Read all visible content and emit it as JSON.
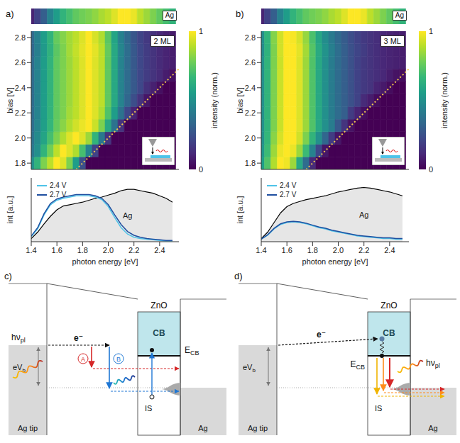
{
  "chart_data": [
    {
      "type": "heatmap",
      "panel": "a)",
      "title": "2 ML",
      "ylabel": "bias [V]",
      "tick_labels": "y",
      "xlim": [
        1.4,
        2.55
      ],
      "ylim": [
        1.75,
        2.85
      ],
      "yticks": [
        1.8,
        {
          "value": 2,
          "label": "2.0"
        },
        2.2,
        2.4,
        2.6,
        2.8
      ],
      "x": [
        1.4,
        1.45,
        1.5,
        1.55,
        1.6,
        1.65,
        1.7,
        1.75,
        1.8,
        1.85,
        1.9,
        1.95,
        2.0,
        2.05,
        2.1,
        2.15,
        2.2,
        2.25,
        2.3,
        2.35,
        2.4,
        2.45,
        2.5
      ],
      "y": [
        1.8,
        1.9,
        2.0,
        2.1,
        2.2,
        2.3,
        2.4,
        2.5,
        2.6,
        2.7,
        2.8
      ],
      "cells": [
        [
          0.5,
          0.65,
          0.8,
          0.9,
          1,
          0.95,
          0.8,
          0.55,
          0.25,
          0,
          0,
          0,
          0,
          0,
          0,
          0,
          0,
          0,
          0,
          0,
          0,
          0,
          0
        ],
        [
          0.4,
          0.5,
          0.65,
          0.78,
          0.9,
          1,
          0.95,
          0.88,
          0.7,
          0.45,
          0.2,
          0,
          0,
          0,
          0,
          0,
          0,
          0,
          0,
          0,
          0,
          0,
          0
        ],
        [
          0.38,
          0.48,
          0.58,
          0.7,
          0.8,
          0.88,
          0.95,
          1,
          0.95,
          0.85,
          0.65,
          0.4,
          0.15,
          0,
          0,
          0,
          0,
          0,
          0,
          0,
          0,
          0,
          0
        ],
        [
          0.36,
          0.46,
          0.56,
          0.66,
          0.76,
          0.82,
          0.88,
          0.93,
          0.97,
          1,
          0.92,
          0.8,
          0.6,
          0.38,
          0.15,
          0,
          0,
          0,
          0,
          0,
          0,
          0,
          0
        ],
        [
          0.35,
          0.45,
          0.55,
          0.65,
          0.75,
          0.8,
          0.86,
          0.9,
          0.95,
          1,
          0.95,
          0.88,
          0.72,
          0.55,
          0.38,
          0.22,
          0.1,
          0,
          0,
          0,
          0,
          0,
          0
        ],
        [
          0.35,
          0.45,
          0.55,
          0.65,
          0.75,
          0.8,
          0.85,
          0.9,
          0.95,
          1,
          0.95,
          0.9,
          0.75,
          0.6,
          0.45,
          0.33,
          0.24,
          0.15,
          0.06,
          0,
          0,
          0,
          0
        ],
        [
          0.35,
          0.45,
          0.55,
          0.65,
          0.75,
          0.8,
          0.85,
          0.9,
          0.95,
          1,
          0.95,
          0.9,
          0.75,
          0.6,
          0.45,
          0.35,
          0.28,
          0.22,
          0.14,
          0.09,
          0.04,
          0,
          0
        ],
        [
          0.35,
          0.45,
          0.55,
          0.65,
          0.75,
          0.8,
          0.85,
          0.9,
          0.95,
          1,
          0.95,
          0.9,
          0.75,
          0.6,
          0.45,
          0.35,
          0.28,
          0.22,
          0.18,
          0.15,
          0.12,
          0.08,
          0.04
        ],
        [
          0.35,
          0.45,
          0.55,
          0.65,
          0.75,
          0.8,
          0.85,
          0.9,
          0.95,
          1,
          0.95,
          0.9,
          0.75,
          0.6,
          0.45,
          0.35,
          0.28,
          0.22,
          0.18,
          0.15,
          0.12,
          0.1,
          0.08
        ],
        [
          0.33,
          0.43,
          0.54,
          0.64,
          0.74,
          0.8,
          0.86,
          0.91,
          0.96,
          1,
          0.96,
          0.9,
          0.76,
          0.6,
          0.46,
          0.36,
          0.28,
          0.22,
          0.18,
          0.15,
          0.12,
          0.1,
          0.08
        ],
        [
          0.34,
          0.44,
          0.55,
          0.65,
          0.76,
          0.81,
          0.86,
          0.9,
          0.95,
          1,
          0.94,
          0.88,
          0.74,
          0.58,
          0.44,
          0.34,
          0.27,
          0.21,
          0.17,
          0.14,
          0.11,
          0.09,
          0.07
        ]
      ],
      "colorbar": {
        "label": "intensity (norm.)",
        "range": [
          0,
          1
        ],
        "ticks": [
          0,
          1
        ]
      },
      "reference": {
        "label": "Ag",
        "values": [
          0.1,
          0.2,
          0.3,
          0.45,
          0.55,
          0.65,
          0.7,
          0.75,
          0.78,
          0.8,
          0.83,
          0.87,
          0.9,
          0.95,
          1,
          1,
          0.97,
          0.9,
          0.85,
          0.8,
          0.75,
          0.7,
          0.65
        ]
      },
      "cutoff": {
        "x": [
          1.75,
          2.55
        ],
        "y": [
          1.75,
          2.55
        ],
        "color": "#f2c94c",
        "line_style": "dotted"
      },
      "spectra": {
        "type": "line",
        "xlabel": "photon energy [eV]",
        "ylabel": "int [a.u.]",
        "tick_labels": "x",
        "legend": "upper left",
        "xlim": [
          1.4,
          2.55
        ],
        "xticks": [
          1.4,
          1.6,
          1.8,
          {
            "value": 2,
            "label": "2.0"
          },
          2.2,
          2.4
        ],
        "ylim": [
          0,
          1
        ],
        "yticks": [],
        "x": [
          1.4,
          1.45,
          1.5,
          1.55,
          1.6,
          1.65,
          1.7,
          1.75,
          1.8,
          1.85,
          1.9,
          1.95,
          2.0,
          2.05,
          2.1,
          2.15,
          2.2,
          2.25,
          2.3,
          2.35,
          2.4,
          2.45,
          2.5
        ],
        "series": [
          {
            "name": "Ag",
            "type": "area",
            "color": "#000000",
            "values": [
              0.05,
              0.15,
              0.28,
              0.4,
              0.5,
              0.56,
              0.58,
              0.6,
              0.62,
              0.65,
              0.68,
              0.7,
              0.73,
              0.76,
              0.8,
              0.82,
              0.82,
              0.8,
              0.78,
              0.76,
              0.72,
              0.68,
              0.62
            ]
          },
          {
            "name": "2.4 V",
            "type": "line",
            "color": "#4fc3e8",
            "values": [
              0.08,
              0.2,
              0.42,
              0.58,
              0.65,
              0.68,
              0.7,
              0.72,
              0.72,
              0.72,
              0.7,
              0.66,
              0.55,
              0.38,
              0.22,
              0.12,
              0.07,
              0.05,
              0.04,
              0.03,
              0.02,
              0.01,
              0.01
            ]
          },
          {
            "name": "2.7 V",
            "type": "line",
            "color": "#1f4fa0",
            "values": [
              0.09,
              0.22,
              0.44,
              0.6,
              0.67,
              0.7,
              0.72,
              0.74,
              0.74,
              0.74,
              0.72,
              0.68,
              0.58,
              0.42,
              0.27,
              0.16,
              0.1,
              0.07,
              0.05,
              0.04,
              0.03,
              0.02,
              0.02
            ]
          }
        ]
      }
    },
    {
      "type": "heatmap",
      "panel": "b)",
      "title": "3 ML",
      "ylabel": "bias [V]",
      "tick_labels": "y",
      "xlim": [
        1.4,
        2.55
      ],
      "ylim": [
        1.75,
        2.85
      ],
      "yticks": [
        1.8,
        {
          "value": 2,
          "label": "2.0"
        },
        2.2,
        2.4,
        2.6,
        2.8
      ],
      "x": [
        1.4,
        1.45,
        1.5,
        1.55,
        1.6,
        1.65,
        1.7,
        1.75,
        1.8,
        1.85,
        1.9,
        1.95,
        2.0,
        2.05,
        2.1,
        2.15,
        2.2,
        2.25,
        2.3,
        2.35,
        2.4,
        2.45,
        2.5
      ],
      "y": [
        1.8,
        1.9,
        2.0,
        2.1,
        2.2,
        2.3,
        2.4,
        2.5,
        2.6,
        2.7,
        2.8
      ],
      "cells": [
        [
          0.55,
          0.72,
          0.88,
          1,
          0.98,
          0.85,
          0.6,
          0.35,
          0.12,
          0,
          0,
          0,
          0,
          0,
          0,
          0,
          0,
          0,
          0,
          0,
          0,
          0,
          0
        ],
        [
          0.52,
          0.68,
          0.85,
          0.97,
          1,
          0.97,
          0.85,
          0.68,
          0.45,
          0.22,
          0.06,
          0,
          0,
          0,
          0,
          0,
          0,
          0,
          0,
          0,
          0,
          0,
          0
        ],
        [
          0.5,
          0.66,
          0.82,
          0.94,
          1,
          1,
          0.93,
          0.8,
          0.65,
          0.5,
          0.33,
          0.18,
          0.06,
          0,
          0,
          0,
          0,
          0,
          0,
          0,
          0,
          0,
          0
        ],
        [
          0.5,
          0.65,
          0.8,
          0.92,
          1,
          1,
          0.95,
          0.85,
          0.72,
          0.6,
          0.5,
          0.42,
          0.28,
          0.15,
          0.05,
          0,
          0,
          0,
          0,
          0,
          0,
          0,
          0
        ],
        [
          0.5,
          0.65,
          0.8,
          0.92,
          1,
          1,
          0.95,
          0.85,
          0.72,
          0.6,
          0.5,
          0.42,
          0.35,
          0.3,
          0.18,
          0.1,
          0.04,
          0,
          0,
          0,
          0,
          0,
          0
        ],
        [
          0.5,
          0.65,
          0.8,
          0.92,
          1,
          1,
          0.95,
          0.85,
          0.72,
          0.6,
          0.5,
          0.42,
          0.35,
          0.3,
          0.25,
          0.2,
          0.12,
          0.08,
          0.03,
          0,
          0,
          0,
          0
        ],
        [
          0.5,
          0.65,
          0.8,
          0.92,
          1,
          1,
          0.95,
          0.85,
          0.72,
          0.6,
          0.5,
          0.42,
          0.35,
          0.3,
          0.25,
          0.2,
          0.17,
          0.15,
          0.1,
          0.07,
          0.03,
          0,
          0
        ],
        [
          0.5,
          0.65,
          0.8,
          0.92,
          1,
          1,
          0.95,
          0.85,
          0.72,
          0.6,
          0.5,
          0.42,
          0.35,
          0.3,
          0.25,
          0.2,
          0.17,
          0.15,
          0.13,
          0.11,
          0.08,
          0.05,
          0.03
        ],
        [
          0.5,
          0.65,
          0.8,
          0.92,
          1,
          1,
          0.95,
          0.85,
          0.72,
          0.6,
          0.5,
          0.42,
          0.35,
          0.3,
          0.25,
          0.2,
          0.17,
          0.15,
          0.13,
          0.11,
          0.1,
          0.09,
          0.08
        ],
        [
          0.48,
          0.64,
          0.8,
          0.93,
          1,
          1,
          0.96,
          0.86,
          0.73,
          0.61,
          0.51,
          0.43,
          0.36,
          0.3,
          0.25,
          0.21,
          0.18,
          0.15,
          0.13,
          0.11,
          0.1,
          0.09,
          0.08
        ],
        [
          0.49,
          0.65,
          0.81,
          0.93,
          1,
          0.99,
          0.94,
          0.84,
          0.71,
          0.59,
          0.49,
          0.41,
          0.34,
          0.29,
          0.24,
          0.2,
          0.17,
          0.15,
          0.13,
          0.11,
          0.1,
          0.09,
          0.08
        ]
      ],
      "colorbar": {
        "label": "intensity (norm.)",
        "range": [
          0,
          1
        ],
        "ticks": [
          0,
          1
        ]
      },
      "reference": {
        "label": "Ag",
        "values": [
          0.1,
          0.2,
          0.3,
          0.45,
          0.55,
          0.65,
          0.7,
          0.75,
          0.78,
          0.8,
          0.83,
          0.87,
          0.9,
          0.95,
          1,
          1,
          0.97,
          0.9,
          0.85,
          0.8,
          0.75,
          0.7,
          0.65
        ]
      },
      "cutoff": {
        "x": [
          1.75,
          2.55
        ],
        "y": [
          1.75,
          2.55
        ],
        "color": "#f2c94c",
        "line_style": "dotted"
      },
      "spectra": {
        "type": "line",
        "xlabel": "photon energy [eV]",
        "ylabel": "int [a.u.]",
        "tick_labels": "x",
        "legend": "upper left",
        "xlim": [
          1.4,
          2.55
        ],
        "xticks": [
          1.4,
          1.6,
          1.8,
          {
            "value": 2,
            "label": "2.0"
          },
          2.2,
          2.4
        ],
        "ylim": [
          0,
          1
        ],
        "yticks": [],
        "x": [
          1.4,
          1.45,
          1.5,
          1.55,
          1.6,
          1.65,
          1.7,
          1.75,
          1.8,
          1.85,
          1.9,
          1.95,
          2.0,
          2.05,
          2.1,
          2.15,
          2.2,
          2.25,
          2.3,
          2.35,
          2.4,
          2.45,
          2.5
        ],
        "series": [
          {
            "name": "Ag",
            "type": "area",
            "color": "#000000",
            "values": [
              0.05,
              0.15,
              0.3,
              0.45,
              0.55,
              0.6,
              0.63,
              0.66,
              0.68,
              0.7,
              0.72,
              0.75,
              0.78,
              0.8,
              0.82,
              0.84,
              0.85,
              0.84,
              0.82,
              0.8,
              0.78,
              0.75,
              0.72
            ]
          },
          {
            "name": "2.4 V",
            "type": "line",
            "color": "#4fc3e8",
            "values": [
              0.04,
              0.1,
              0.2,
              0.27,
              0.3,
              0.31,
              0.3,
              0.28,
              0.25,
              0.22,
              0.2,
              0.17,
              0.15,
              0.13,
              0.11,
              0.09,
              0.08,
              0.07,
              0.06,
              0.05,
              0.05,
              0.04,
              0.04
            ]
          },
          {
            "name": "2.7 V",
            "type": "line",
            "color": "#1f4fa0",
            "values": [
              0.04,
              0.11,
              0.21,
              0.28,
              0.31,
              0.32,
              0.31,
              0.29,
              0.26,
              0.23,
              0.21,
              0.18,
              0.16,
              0.14,
              0.12,
              0.1,
              0.09,
              0.08,
              0.07,
              0.06,
              0.06,
              0.05,
              0.05
            ]
          }
        ]
      }
    }
  ],
  "diagrams": [
    {
      "panel": "c)",
      "material": "ZnO",
      "band": "CB",
      "band_edge": {
        "main": "E",
        "sub": "CB"
      },
      "bias": {
        "main": "eV",
        "sub": "b"
      },
      "state": "IS",
      "tip": "Ag tip",
      "substrate": "Ag",
      "photon": {
        "main": "hν",
        "sub": "pl"
      },
      "electron": "e⁻",
      "paths": [
        "A",
        "B"
      ]
    },
    {
      "panel": "d)",
      "material": "ZnO",
      "band": "CB",
      "band_edge": {
        "main": "E",
        "sub": "CB"
      },
      "bias": {
        "main": "eV",
        "sub": "b"
      },
      "state": "IS",
      "tip": "Ag tip",
      "substrate": "Ag",
      "photon": {
        "main": "hν",
        "sub": "pl"
      },
      "electron": "e⁻"
    }
  ]
}
